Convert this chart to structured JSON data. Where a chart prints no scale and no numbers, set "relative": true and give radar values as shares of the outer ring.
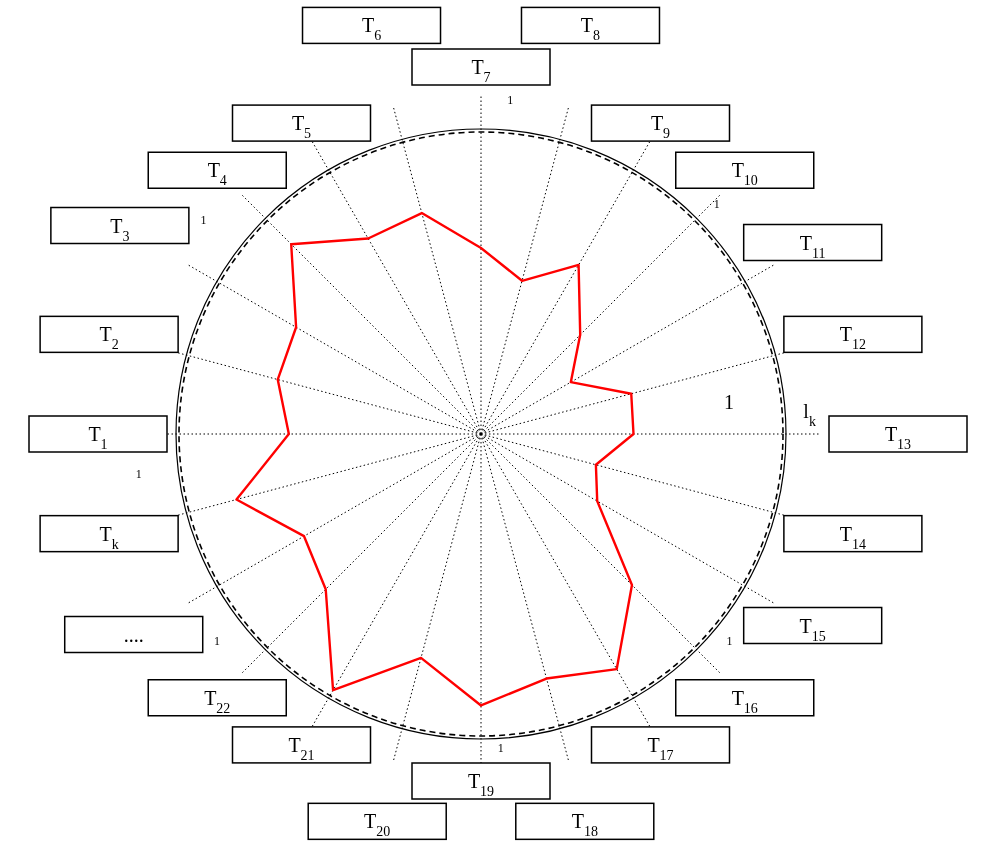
{
  "chart_data": {
    "type": "radar",
    "relative": true,
    "grid": true,
    "categories": [
      "T$_{7}$",
      "T$_{8}$",
      "T$_{9}$",
      "T$_{10}$",
      "T$_{11}$",
      "T$_{12}$",
      "T$_{13}$",
      "T$_{14}$",
      "T$_{15}$",
      "T$_{16}$",
      "T$_{17}$",
      "T$_{18}$",
      "T$_{19}$",
      "T$_{20}$",
      "T$_{21}$",
      "T$_{22}$",
      "....",
      "T$_{k}$",
      "T$_{1}$",
      "T$_{2}$",
      "T$_{3}$",
      "T$_{4}$",
      "T$_{5}$",
      "T$_{6}$"
    ],
    "series": [
      {
        "color": "#ff0000",
        "line_style": "solid",
        "values": [
          0.61,
          0.52,
          0.64,
          0.46,
          0.34,
          0.51,
          0.5,
          0.39,
          0.44,
          0.7,
          0.89,
          0.83,
          0.89,
          0.76,
          0.97,
          0.72,
          0.67,
          0.83,
          0.63,
          0.69,
          0.7,
          0.88,
          0.74,
          0.75
        ]
      }
    ],
    "annotations": [
      "1",
      "1",
      "1",
      "1",
      "1",
      "1",
      "1",
      "1",
      "l$_{k}$"
    ]
  }
}
